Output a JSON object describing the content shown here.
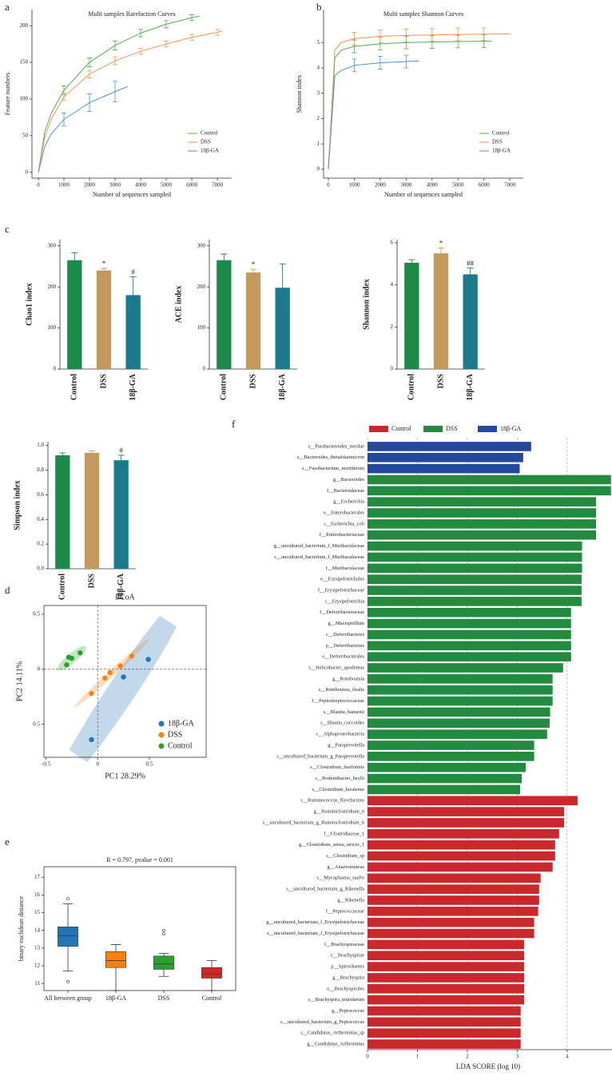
{
  "panel_labels": [
    "a",
    "b",
    "c",
    "d",
    "e",
    "f"
  ],
  "chart_data": [
    {
      "type": "line",
      "title": "Multi samples Rarefaction Curves",
      "x_label": "Number of sequences sampled",
      "y_label": "Feature numbers",
      "xlim": [
        -250,
        7560
      ],
      "ylim": [
        -8,
        222
      ],
      "xticks": [
        0,
        1000,
        2000,
        3000,
        4000,
        5000,
        6000,
        7000
      ],
      "yticks": [
        0,
        50,
        100,
        150,
        200
      ],
      "legend": "bottom-right",
      "series": [
        {
          "name": "Control",
          "color": "#4fae4f",
          "x": [
            0,
            250,
            500,
            1000,
            2000,
            3000,
            4000,
            5000,
            6000,
            6300
          ],
          "values": [
            0,
            55,
            80,
            112,
            150,
            173,
            190,
            202,
            211,
            213
          ],
          "errors": [
            null,
            null,
            null,
            6,
            6,
            6,
            5,
            5,
            4,
            null
          ]
        },
        {
          "name": "DSS",
          "color": "#f3944f",
          "x": [
            0,
            250,
            500,
            1000,
            2000,
            3000,
            4000,
            5000,
            6000,
            7000,
            7200
          ],
          "values": [
            0,
            48,
            72,
            103,
            134,
            152,
            165,
            175,
            184,
            191,
            193
          ],
          "errors": [
            null,
            null,
            null,
            5,
            5,
            5,
            4,
            4,
            4,
            4,
            null
          ]
        },
        {
          "name": "18β-GA",
          "color": "#4a8fd6",
          "x": [
            0,
            250,
            500,
            1000,
            2000,
            3000,
            3500
          ],
          "values": [
            0,
            35,
            52,
            72,
            95,
            110,
            117
          ],
          "errors": [
            null,
            null,
            null,
            9,
            12,
            14,
            null
          ]
        }
      ]
    },
    {
      "type": "line",
      "title": "Multi samples Shannon Curves",
      "x_label": "Number of sequences sampled",
      "y_label": "Shannon index",
      "xlim": [
        -185,
        7520
      ],
      "ylim": [
        -0.35,
        6.3
      ],
      "xticks": [
        0,
        1000,
        2000,
        3000,
        4000,
        5000,
        6000,
        7000
      ],
      "yticks": [
        0,
        1,
        2,
        3,
        4,
        5
      ],
      "legend": "bottom-right",
      "series": [
        {
          "name": "Control",
          "color": "#4fae4f",
          "x": [
            0,
            250,
            500,
            1000,
            2000,
            3000,
            4000,
            5000,
            6000,
            6300
          ],
          "values": [
            0,
            4.4,
            4.7,
            4.85,
            4.95,
            5.0,
            5.02,
            5.04,
            5.05,
            5.05
          ],
          "errors": [
            null,
            null,
            null,
            0.25,
            0.25,
            0.25,
            0.25,
            0.25,
            0.25,
            null
          ]
        },
        {
          "name": "DSS",
          "color": "#f3944f",
          "x": [
            0,
            250,
            500,
            1000,
            2000,
            3000,
            4000,
            5000,
            6000,
            7000
          ],
          "values": [
            0,
            4.7,
            5.0,
            5.15,
            5.25,
            5.28,
            5.3,
            5.32,
            5.33,
            5.34
          ],
          "errors": [
            null,
            null,
            null,
            0.25,
            0.25,
            0.25,
            0.25,
            0.25,
            0.25,
            null
          ]
        },
        {
          "name": "18β-GA",
          "color": "#4a8fd6",
          "x": [
            0,
            250,
            500,
            1000,
            2000,
            3000,
            3500
          ],
          "values": [
            0,
            3.7,
            3.9,
            4.1,
            4.2,
            4.25,
            4.27
          ],
          "errors": [
            null,
            null,
            null,
            0.25,
            0.25,
            0.25,
            null
          ]
        }
      ]
    },
    {
      "type": "bar",
      "y_label": "Chao1 index",
      "categories": [
        "Control",
        "DSS",
        "18β-GA"
      ],
      "values": [
        265,
        240,
        180
      ],
      "errors": [
        18,
        5,
        45
      ],
      "annotations": [
        null,
        "*",
        "#"
      ],
      "colors": [
        "#1e8a4a",
        "#c49a5c",
        "#1b7a8c"
      ],
      "ylim": [
        0,
        315
      ],
      "yticks": [
        0,
        100,
        200,
        300
      ]
    },
    {
      "type": "bar",
      "y_label": "ACE index",
      "categories": [
        "Control",
        "DSS",
        "18β-GA"
      ],
      "values": [
        265,
        235,
        198
      ],
      "errors": [
        15,
        8,
        58
      ],
      "annotations": [
        null,
        "*",
        null
      ],
      "colors": [
        "#1e8a4a",
        "#c49a5c",
        "#1b7a8c"
      ],
      "ylim": [
        0,
        315
      ],
      "yticks": [
        0,
        100,
        200,
        300
      ]
    },
    {
      "type": "bar",
      "y_label": "Shannon index",
      "categories": [
        "Control",
        "DSS",
        "18β-GA"
      ],
      "values": [
        5.05,
        5.5,
        4.5
      ],
      "errors": [
        0.15,
        0.25,
        0.3
      ],
      "annotations": [
        null,
        "*",
        "##"
      ],
      "colors": [
        "#1e8a4a",
        "#c49a5c",
        "#1b7a8c"
      ],
      "ylim": [
        0,
        6.15
      ],
      "yticks": [
        0,
        2,
        4,
        6
      ]
    },
    {
      "type": "bar",
      "y_label": "Simpson index",
      "categories": [
        "Control",
        "DSS",
        "18β-GA"
      ],
      "values": [
        0.92,
        0.94,
        0.88
      ],
      "errors": [
        0.02,
        0.015,
        0.04
      ],
      "annotations": [
        null,
        null,
        "#"
      ],
      "colors": [
        "#1e8a4a",
        "#c49a5c",
        "#1b7a8c"
      ],
      "ylim": [
        0,
        1.03
      ],
      "yticks": [
        {
          "value": 0,
          "label": "0.0"
        },
        0.2,
        0.4,
        0.6,
        0.8,
        {
          "value": 1,
          "label": "1.0"
        }
      ]
    },
    {
      "type": "scatter",
      "title": "PCoA",
      "x_label": "PC1 28.29%",
      "y_label": "PC2 14.11%",
      "xlim": [
        -0.52,
        1.05
      ],
      "ylim": [
        -0.8,
        0.58
      ],
      "xticks": [
        -0.5,
        0,
        0.5
      ],
      "yticks": [
        0.5,
        0,
        {
          "value": -0.5,
          "label": "0.5"
        }
      ],
      "legend": "bottom-right",
      "series": [
        {
          "name": "18β-GA",
          "color": "#1f77b4",
          "x": [
            0.49,
            0.25,
            -0.06
          ],
          "values": [
            0.09,
            -0.07,
            -0.64
          ]
        },
        {
          "name": "DSS",
          "color": "#ff7f0e",
          "x": [
            0.33,
            0.22,
            0.12,
            0.07,
            -0.06
          ],
          "values": [
            0.12,
            0.03,
            -0.03,
            -0.08,
            -0.22
          ]
        },
        {
          "name": "Control",
          "color": "#2ca02c",
          "x": [
            -0.17,
            -0.25,
            -0.28,
            -0.3
          ],
          "values": [
            0.15,
            0.1,
            0.11,
            0.04
          ]
        }
      ]
    },
    {
      "type": "box",
      "title": "R = 0.797, pvalue = 0.001",
      "y_label": "binary euclidean distance",
      "categories": [
        "All between group",
        "18β-GA",
        "DSS",
        "Control"
      ],
      "colors": [
        "#1f77b4",
        "#ff7f0e",
        "#2ca02c",
        "#d62728"
      ],
      "ylim": [
        10.6,
        17.6
      ],
      "yticks": [
        11,
        12,
        13,
        14,
        15,
        16,
        17
      ],
      "boxes": [
        {
          "min": 11.7,
          "q1": 13.1,
          "median": 13.7,
          "q3": 14.2,
          "max": 15.5,
          "outliers": [
            15.8,
            11.1
          ]
        },
        {
          "min": 10.6,
          "q1": 11.9,
          "median": 12.3,
          "q3": 12.8,
          "max": 13.2,
          "outliers": []
        },
        {
          "min": 11.4,
          "q1": 11.8,
          "median": 12.1,
          "q3": 12.55,
          "max": 12.7,
          "outliers": [
            13.8,
            14.0
          ]
        },
        {
          "min": 10.6,
          "q1": 11.3,
          "median": 11.55,
          "q3": 11.9,
          "max": 12.3,
          "outliers": []
        }
      ]
    },
    {
      "type": "hbar",
      "x_label": "LDA SCORE (log 10)",
      "xlim": [
        0,
        4.9
      ],
      "xticks": [
        0,
        1,
        2,
        3,
        4
      ],
      "grid": true,
      "series": [
        {
          "name": "18β-GA",
          "color": "#24489a",
          "categories": [
            "s__Parabacteroides_merdae",
            "s__Bacteroides_thetaiotaomicron",
            "s__Fusobacterium_mortiferum"
          ],
          "values": [
            3.28,
            3.12,
            3.05
          ]
        },
        {
          "name": "DSS",
          "color": "#238b3f",
          "categories": [
            "g__Bacteroides",
            "f__Bacteroidaceae",
            "g__Escherichia",
            "o__Enterobacterales",
            "s__Escherichia_coli",
            "f__Enterobacteriaceae",
            "g__uncultured_bacterium_f_Muribaculaceae",
            "s__uncultured_bacterium_f_Muribaculaceae",
            "f__Muribaculaceae",
            "o__Erysipelotrichales",
            "f__Erysipelotrichaceae",
            "c__Erysipelotrichia",
            "f__Deferribacteraceae",
            "g__Mucispirillum",
            "c__Deferribacteres",
            "p__Deferribacteres",
            "o__Deferribacterales",
            "s__Helicobacter_apodemus",
            "g__Romboutsia",
            "s__Romboutsia_ilealis",
            "f__Peptostreptococcaceae",
            "s__Blautia_hansenii",
            "s__Blautia_coccoides",
            "c__Alphaproteobacteria",
            "g__Paraprevotella",
            "s__uncultured_bacterium_g_Paraprevotella",
            "s__Clostridium_fusiformis",
            "s__Rodentibacter_heylii",
            "s__Clostridium_lavalense"
          ],
          "values": [
            4.88,
            4.88,
            4.58,
            4.58,
            4.58,
            4.58,
            4.3,
            4.3,
            4.3,
            4.29,
            4.29,
            4.29,
            4.08,
            4.08,
            4.08,
            4.08,
            4.08,
            3.92,
            3.71,
            3.71,
            3.71,
            3.66,
            3.65,
            3.6,
            3.34,
            3.34,
            3.17,
            3.09,
            3.06
          ]
        },
        {
          "name": "Control",
          "color": "#c9282d",
          "categories": [
            "s__Ruminococcus_flavefaciens",
            "g__Ruminiclostridium_6",
            "s__uncultured_bacterium_g_Ruminiclostridium_6",
            "f__Clostridiaceae_1",
            "g__Clostridium_sensu_stricto_1",
            "s__Clostridium_sp",
            "g__Anaerotruncus",
            "s__Mycoplasma_sualvi",
            "s__uncultured_bacterium_g_Rikenella",
            "g__Rikenella",
            "f__Peptococcaceae",
            "g__uncultured_bacterium_f_Erysipelotrichaceae",
            "s__uncultured_bacterium_f_Erysipelotrichaceae",
            "f__Brachyspiraceae",
            "c__Brachyspirae",
            "p__Spirochaetes",
            "g__Brachyspira",
            "o__Brachyspirales",
            "s__Brachyspira_muridarum",
            "g__Peptococcus",
            "s__uncultured_bacterium_g_Peptococcus",
            "s__Candidatus_Arthromitus_sp",
            "g__Candidatus_Arthromitus"
          ],
          "values": [
            4.21,
            3.94,
            3.94,
            3.84,
            3.76,
            3.76,
            3.71,
            3.47,
            3.44,
            3.44,
            3.42,
            3.34,
            3.34,
            3.14,
            3.14,
            3.14,
            3.14,
            3.14,
            3.14,
            3.07,
            3.07,
            3.07,
            3.07
          ]
        }
      ]
    }
  ]
}
